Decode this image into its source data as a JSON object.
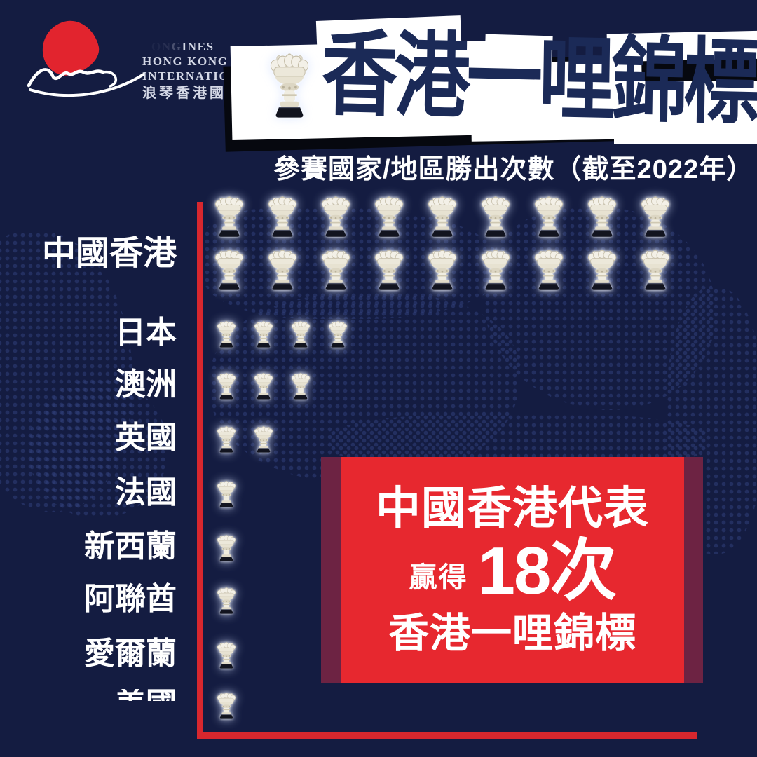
{
  "logo": {
    "brand": "LONGINES",
    "line2": "HONG KONG",
    "line3": "INTERNATIONAL RACES",
    "line4": "浪琴香港國際賽事"
  },
  "banner": {
    "title": "香港一哩錦標"
  },
  "subtitle": "參賽國家/地區勝出次數（截至2022年）",
  "chart_data": {
    "type": "pictogram",
    "icon": "champion-trophy",
    "one_icon_equals": 1,
    "title": "香港一哩錦標",
    "subtitle": "參賽國家/地區勝出次數（截至2022年）",
    "categories": [
      "中國香港",
      "日本",
      "澳洲",
      "英國",
      "法國",
      "新西蘭",
      "阿聯酋",
      "愛爾蘭",
      "美國"
    ],
    "values": [
      18,
      4,
      3,
      2,
      1,
      1,
      1,
      1,
      1
    ],
    "axis": "red L-shaped axis, categories on left, trophy icons counted to the right",
    "note": "last category row (美國) is cropped by the bottom edge of the image"
  },
  "callout": {
    "line1": "中國香港代表",
    "won_label": "贏得",
    "count": "18次",
    "line2": "香港一哩錦標"
  },
  "colors": {
    "background": "#141c41",
    "map_dots": "#31407a",
    "axis_red": "#d7272e",
    "callout_red": "#e7282f",
    "callout_dark_red": "#6d2343",
    "banner_text_navy": "#1b2a57",
    "banner_white": "#ffffff",
    "logo_red": "#e2242e"
  }
}
